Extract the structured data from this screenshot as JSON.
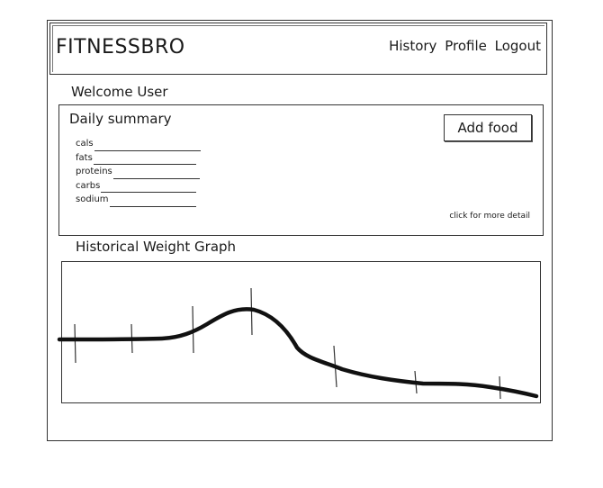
{
  "header": {
    "brand": "FITNESSBRO",
    "nav": [
      "History",
      "Profile",
      "Logout"
    ]
  },
  "welcome": "Welcome User",
  "daily_summary": {
    "title": "Daily summary",
    "metrics": [
      "cals",
      "fats",
      "proteins",
      "carbs",
      "sodium"
    ],
    "add_food_label": "Add food",
    "more_detail_link": "click for more detail"
  },
  "graph": {
    "title": "Historical Weight Graph"
  }
}
